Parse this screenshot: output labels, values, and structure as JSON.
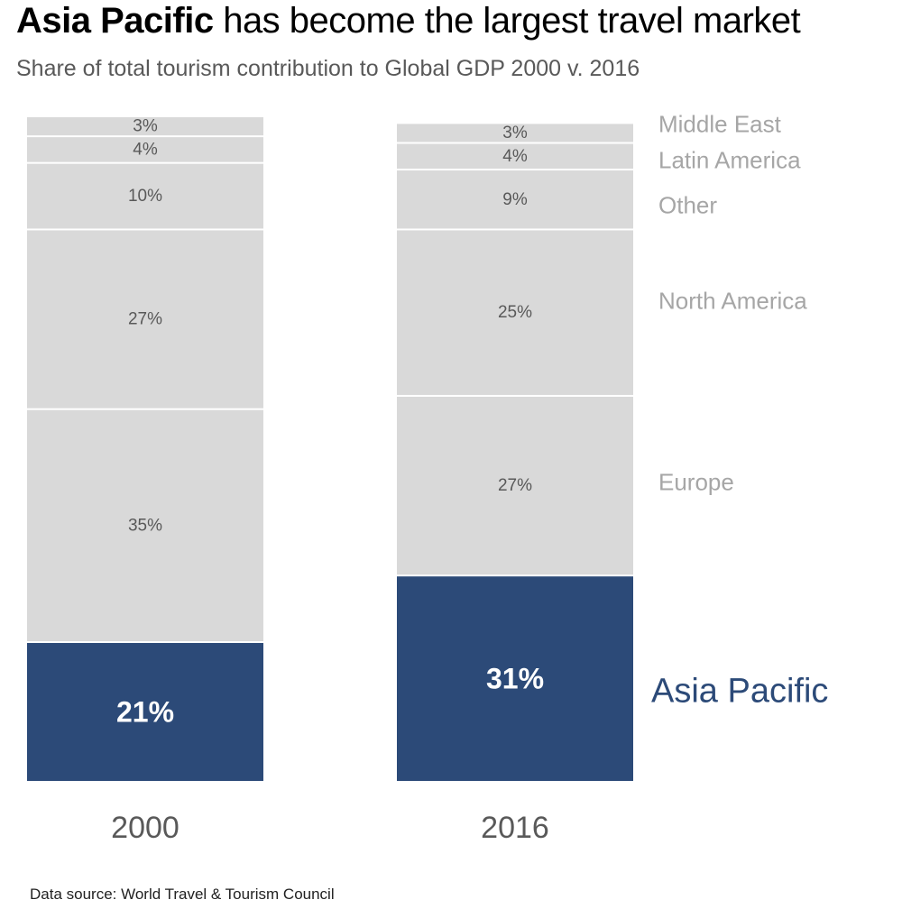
{
  "title": {
    "highlight": "Asia Pacific",
    "rest": " has become the largest travel market"
  },
  "subtitle": "Share of total tourism contribution to Global GDP 2000 v. 2016",
  "source": "Data source: World Travel & Tourism Council",
  "colors": {
    "highlight": "#2C4A78",
    "segment": "#D9D9D9",
    "segment_label": "#595959",
    "category_label": "#A6A6A6",
    "highlight_label": "#FFFFFF",
    "axis_label": "#595959"
  },
  "chart_data": {
    "type": "bar",
    "stacked": true,
    "categories": [
      "2000",
      "2016"
    ],
    "series": [
      {
        "name": "Asia Pacific",
        "values": [
          21,
          31
        ],
        "labels": [
          "21%",
          "31%"
        ],
        "highlight": true
      },
      {
        "name": "Europe",
        "values": [
          35,
          27
        ],
        "labels": [
          "35%",
          "27%"
        ]
      },
      {
        "name": "North America",
        "values": [
          27,
          25
        ],
        "labels": [
          "27%",
          "25%"
        ]
      },
      {
        "name": "Other",
        "values": [
          10,
          9
        ],
        "labels": [
          "10%",
          "9%"
        ]
      },
      {
        "name": "Latin America",
        "values": [
          4,
          4
        ],
        "labels": [
          "4%",
          "4%"
        ]
      },
      {
        "name": "Middle East",
        "values": [
          3,
          3
        ],
        "labels": [
          "3%",
          "3%"
        ]
      }
    ],
    "ylim": [
      0,
      100
    ],
    "grid": false,
    "legend": "right, direct labels"
  }
}
